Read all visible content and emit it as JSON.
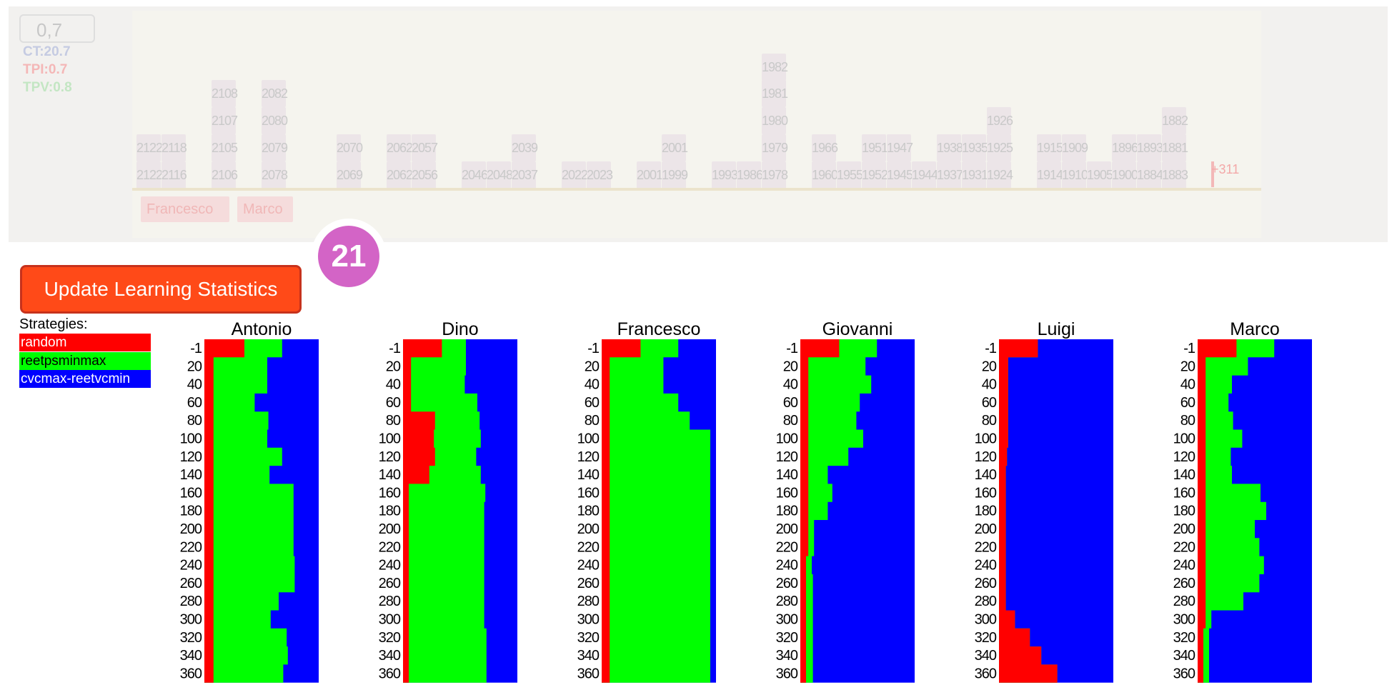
{
  "timeline": {
    "value": "0,7",
    "metrics": [
      {
        "label": "CT:20.7",
        "color": "#c5cbe2"
      },
      {
        "label": "TPI:0.7",
        "color": "#f4b7b7"
      },
      {
        "label": "TPV:0.8",
        "color": "#c3e6c3"
      }
    ],
    "blocks": [
      {
        "id": "2122",
        "col": 0,
        "row": 1
      },
      {
        "id": "2122",
        "col": 0,
        "row": 0
      },
      {
        "id": "2118",
        "col": 1,
        "row": 1
      },
      {
        "id": "2116",
        "col": 1,
        "row": 0
      },
      {
        "id": "2108",
        "col": 3,
        "row": 4
      },
      {
        "id": "2107",
        "col": 3,
        "row": 3
      },
      {
        "id": "2105",
        "col": 3,
        "row": 1
      },
      {
        "id": "2106",
        "col": 3,
        "row": 0
      },
      {
        "id": "2082",
        "col": 5,
        "row": 4
      },
      {
        "id": "2080",
        "col": 5,
        "row": 3
      },
      {
        "id": "2079",
        "col": 5,
        "row": 1
      },
      {
        "id": "2078",
        "col": 5,
        "row": 0
      },
      {
        "id": "2070",
        "col": 8,
        "row": 1
      },
      {
        "id": "2069",
        "col": 8,
        "row": 0
      },
      {
        "id": "2062",
        "col": 10,
        "row": 1
      },
      {
        "id": "2062",
        "col": 10,
        "row": 0
      },
      {
        "id": "2057",
        "col": 11,
        "row": 1
      },
      {
        "id": "2056",
        "col": 11,
        "row": 0
      },
      {
        "id": "2046",
        "col": 13,
        "row": 0
      },
      {
        "id": "2048",
        "col": 14,
        "row": 0
      },
      {
        "id": "2039",
        "col": 15,
        "row": 1
      },
      {
        "id": "2037",
        "col": 15,
        "row": 0
      },
      {
        "id": "2022",
        "col": 17,
        "row": 0
      },
      {
        "id": "2023",
        "col": 18,
        "row": 0
      },
      {
        "id": "2001",
        "col": 20,
        "row": 0
      },
      {
        "id": "2001",
        "col": 21,
        "row": 1
      },
      {
        "id": "1999",
        "col": 21,
        "row": 0
      },
      {
        "id": "1993",
        "col": 23,
        "row": 0
      },
      {
        "id": "1986",
        "col": 24,
        "row": 0
      },
      {
        "id": "1982",
        "col": 25,
        "row": 5
      },
      {
        "id": "1981",
        "col": 25,
        "row": 4
      },
      {
        "id": "1980",
        "col": 25,
        "row": 3
      },
      {
        "id": "1979",
        "col": 25,
        "row": 1
      },
      {
        "id": "1978",
        "col": 25,
        "row": 0
      },
      {
        "id": "1966",
        "col": 27,
        "row": 1
      },
      {
        "id": "1960",
        "col": 27,
        "row": 0
      },
      {
        "id": "1955",
        "col": 28,
        "row": 0
      },
      {
        "id": "1951",
        "col": 29,
        "row": 1
      },
      {
        "id": "1952",
        "col": 29,
        "row": 0
      },
      {
        "id": "1947",
        "col": 30,
        "row": 1
      },
      {
        "id": "1945",
        "col": 30,
        "row": 0
      },
      {
        "id": "1944",
        "col": 31,
        "row": 0
      },
      {
        "id": "1938",
        "col": 32,
        "row": 1
      },
      {
        "id": "1937",
        "col": 32,
        "row": 0
      },
      {
        "id": "1935",
        "col": 33,
        "row": 1
      },
      {
        "id": "1931",
        "col": 33,
        "row": 0
      },
      {
        "id": "1926",
        "col": 34,
        "row": 3
      },
      {
        "id": "1925",
        "col": 34,
        "row": 1
      },
      {
        "id": "1924",
        "col": 34,
        "row": 0
      },
      {
        "id": "1915",
        "col": 36,
        "row": 1
      },
      {
        "id": "1914",
        "col": 36,
        "row": 0
      },
      {
        "id": "1909",
        "col": 37,
        "row": 1
      },
      {
        "id": "1910",
        "col": 37,
        "row": 0
      },
      {
        "id": "1905",
        "col": 38,
        "row": 0
      },
      {
        "id": "1896",
        "col": 39,
        "row": 1
      },
      {
        "id": "1900",
        "col": 39,
        "row": 0
      },
      {
        "id": "1893",
        "col": 40,
        "row": 1
      },
      {
        "id": "1884",
        "col": 40,
        "row": 0
      },
      {
        "id": "1882",
        "col": 41,
        "row": 3
      },
      {
        "id": "1881",
        "col": 41,
        "row": 1
      },
      {
        "id": "1883",
        "col": 41,
        "row": 0
      }
    ],
    "overflow_label": "+311",
    "tags": [
      {
        "label": "Francesco",
        "left": 197,
        "width": 124
      },
      {
        "label": "Marco",
        "left": 332,
        "width": 78
      }
    ]
  },
  "badge": "21",
  "update_button_label": "Update Learning Statistics",
  "strategies_title": "Strategies:",
  "strategies": [
    {
      "name": "random",
      "color": "#ff0000"
    },
    {
      "name": "reetpsminmax",
      "color": "#00ff00"
    },
    {
      "name": "cvcmax-reetvcmin",
      "color": "#0000ff"
    }
  ],
  "chart_data": {
    "type": "area",
    "y_ticks": [
      "-1",
      "20",
      "40",
      "60",
      "80",
      "100",
      "120",
      "140",
      "160",
      "180",
      "200",
      "220",
      "240",
      "260",
      "280",
      "300",
      "320",
      "340",
      "360"
    ],
    "series_order": [
      "random",
      "reetpsminmax",
      "cvcmax-reetvcmin"
    ],
    "panels": [
      {
        "title": "Antonio",
        "red": [
          0.35,
          0.08,
          0.08,
          0.08,
          0.08,
          0.08,
          0.08,
          0.08,
          0.08,
          0.08,
          0.08,
          0.08,
          0.08,
          0.08,
          0.08,
          0.08,
          0.08,
          0.08,
          0.08
        ],
        "green": [
          0.33,
          0.47,
          0.47,
          0.36,
          0.48,
          0.47,
          0.6,
          0.49,
          0.7,
          0.7,
          0.7,
          0.7,
          0.71,
          0.71,
          0.57,
          0.5,
          0.64,
          0.65,
          0.61
        ]
      },
      {
        "title": "Dino",
        "red": [
          0.34,
          0.07,
          0.07,
          0.07,
          0.28,
          0.27,
          0.28,
          0.23,
          0.05,
          0.05,
          0.05,
          0.05,
          0.05,
          0.05,
          0.05,
          0.05,
          0.05,
          0.05,
          0.05
        ],
        "green": [
          0.21,
          0.48,
          0.47,
          0.58,
          0.39,
          0.41,
          0.36,
          0.45,
          0.67,
          0.66,
          0.66,
          0.66,
          0.66,
          0.66,
          0.66,
          0.66,
          0.68,
          0.68,
          0.68
        ]
      },
      {
        "title": "Francesco",
        "red": [
          0.34,
          0.07,
          0.07,
          0.07,
          0.07,
          0.07,
          0.07,
          0.07,
          0.07,
          0.07,
          0.07,
          0.07,
          0.07,
          0.07,
          0.07,
          0.07,
          0.07,
          0.07,
          0.07
        ],
        "green": [
          0.33,
          0.47,
          0.47,
          0.6,
          0.7,
          0.88,
          0.88,
          0.88,
          0.88,
          0.88,
          0.88,
          0.88,
          0.88,
          0.88,
          0.88,
          0.88,
          0.88,
          0.88,
          0.88
        ]
      },
      {
        "title": "Giovanni",
        "red": [
          0.34,
          0.07,
          0.07,
          0.07,
          0.07,
          0.07,
          0.07,
          0.07,
          0.07,
          0.07,
          0.07,
          0.07,
          0.05,
          0.05,
          0.05,
          0.05,
          0.05,
          0.05,
          0.05
        ],
        "green": [
          0.33,
          0.5,
          0.55,
          0.45,
          0.42,
          0.48,
          0.35,
          0.17,
          0.21,
          0.17,
          0.05,
          0.05,
          0.05,
          0.06,
          0.06,
          0.06,
          0.06,
          0.06,
          0.06
        ]
      },
      {
        "title": "Luigi",
        "red": [
          0.34,
          0.08,
          0.08,
          0.08,
          0.08,
          0.08,
          0.07,
          0.06,
          0.06,
          0.06,
          0.06,
          0.06,
          0.06,
          0.06,
          0.06,
          0.14,
          0.27,
          0.37,
          0.51
        ]
      },
      {
        "title": "Marco",
        "red": [
          0.34,
          0.07,
          0.07,
          0.07,
          0.07,
          0.07,
          0.07,
          0.07,
          0.07,
          0.07,
          0.07,
          0.07,
          0.07,
          0.07,
          0.07,
          0.07,
          0.05,
          0.05,
          0.05
        ],
        "green": [
          0.33,
          0.37,
          0.23,
          0.2,
          0.24,
          0.32,
          0.22,
          0.23,
          0.48,
          0.53,
          0.43,
          0.47,
          0.51,
          0.47,
          0.33,
          0.05,
          0.05,
          0.05,
          0.05
        ]
      }
    ]
  }
}
